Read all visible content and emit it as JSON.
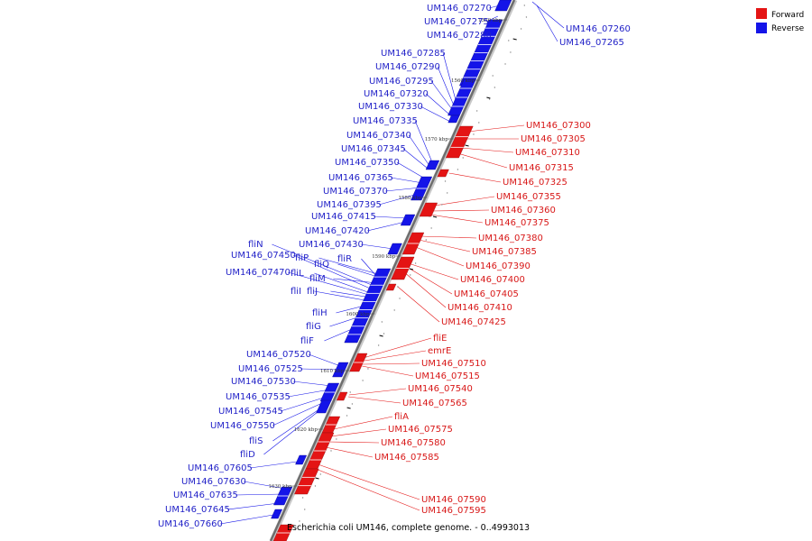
{
  "legend": {
    "forward_label": "Forward",
    "reverse_label": "Reverse",
    "forward_color": "#e41414",
    "reverse_color": "#1414e8"
  },
  "caption": "Escherichia coli UM146, complete genome. - 0..4993013",
  "ticks": [
    "1550 kbp",
    "1560 kbp",
    "1570 kbp",
    "1580 kbp",
    "1590 kbp",
    "1600 kbp",
    "1610 kbp",
    "1620 kbp",
    "1630 kbp"
  ],
  "reverse_labels": [
    "UM146_07270",
    "UM146_07275",
    "UM146_07280",
    "UM146_07285",
    "UM146_07290",
    "UM146_07295",
    "UM146_07320",
    "UM146_07330",
    "UM146_07335",
    "UM146_07340",
    "UM146_07345",
    "UM146_07350",
    "UM146_07365",
    "UM146_07370",
    "UM146_07395",
    "UM146_07415",
    "UM146_07420",
    "UM146_07430",
    "fliN",
    "UM146_07450",
    "fliP",
    "fliQ",
    "fliR",
    "UM146_07470",
    "fliL",
    "fliM",
    "fliJ",
    "fliI",
    "fliH",
    "fliG",
    "fliF",
    "UM146_07520",
    "UM146_07525",
    "UM146_07530",
    "UM146_07535",
    "UM146_07545",
    "UM146_07550",
    "fliS",
    "fliD",
    "UM146_07605",
    "UM146_07630",
    "UM146_07635",
    "UM146_07645",
    "UM146_07660"
  ],
  "reverse_right_labels": [
    "UM146_07260",
    "UM146_07265"
  ],
  "forward_labels": [
    "UM146_07300",
    "UM146_07305",
    "UM146_07310",
    "UM146_07315",
    "UM146_07325",
    "UM146_07355",
    "UM146_07360",
    "UM146_07375",
    "UM146_07380",
    "UM146_07385",
    "UM146_07390",
    "UM146_07400",
    "UM146_07405",
    "UM146_07410",
    "UM146_07425",
    "fliE",
    "emrE",
    "UM146_07510",
    "UM146_07515",
    "UM146_07540",
    "UM146_07565",
    "fliA",
    "UM146_07575",
    "UM146_07580",
    "UM146_07585",
    "UM146_07590",
    "UM146_07595"
  ]
}
